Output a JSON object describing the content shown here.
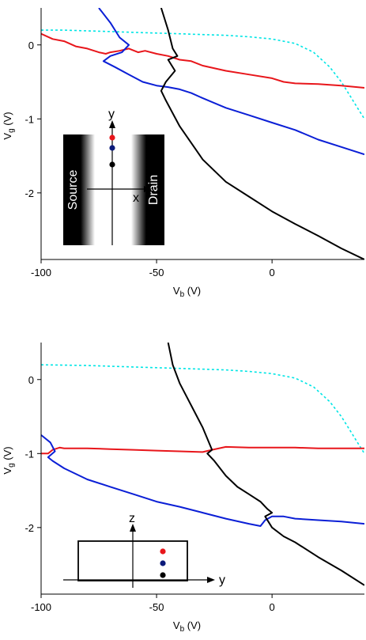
{
  "chart_data": [
    {
      "type": "line",
      "xlabel": "V",
      "xlabel_sub": "b",
      "xlabel_unit": " (V)",
      "ylabel": "V",
      "ylabel_sub": "g",
      "ylabel_unit": " (V)",
      "xlim": [
        -100,
        40
      ],
      "ylim": [
        -2.9,
        0.5
      ],
      "xticks": [
        -100,
        -50,
        0
      ],
      "yticks": [
        0,
        -1,
        -2
      ],
      "grid": false,
      "series": [
        {
          "color": "#00e5e5",
          "dashed": true,
          "x": [
            -100,
            -90,
            -80,
            -70,
            -60,
            -50,
            -40,
            -30,
            -20,
            -10,
            0,
            10,
            18,
            25,
            30,
            34,
            37,
            40
          ],
          "y": [
            0.2,
            0.2,
            0.19,
            0.18,
            0.17,
            0.16,
            0.15,
            0.14,
            0.13,
            0.11,
            0.08,
            0.02,
            -0.1,
            -0.3,
            -0.5,
            -0.7,
            -0.85,
            -1.0
          ]
        },
        {
          "color": "#e8161b",
          "dashed": false,
          "x": [
            -100,
            -95,
            -90,
            -85,
            -80,
            -75,
            -72,
            -70,
            -66,
            -62,
            -58,
            -55,
            -50,
            -45,
            -40,
            -35,
            -30,
            -20,
            -10,
            0,
            5,
            10,
            20,
            30,
            40
          ],
          "y": [
            0.15,
            0.08,
            0.05,
            -0.02,
            -0.05,
            -0.1,
            -0.12,
            -0.1,
            -0.08,
            -0.05,
            -0.1,
            -0.08,
            -0.12,
            -0.15,
            -0.2,
            -0.22,
            -0.28,
            -0.35,
            -0.4,
            -0.45,
            -0.5,
            -0.52,
            -0.53,
            -0.55,
            -0.58
          ]
        },
        {
          "color": "#0b1fd6",
          "dashed": false,
          "x": [
            -75,
            -70,
            -66,
            -62,
            -65,
            -70,
            -73,
            -68,
            -62,
            -56,
            -50,
            -45,
            -40,
            -35,
            -30,
            -20,
            -10,
            0,
            10,
            20,
            30,
            40
          ],
          "y": [
            0.5,
            0.3,
            0.1,
            0.0,
            -0.1,
            -0.15,
            -0.22,
            -0.3,
            -0.4,
            -0.5,
            -0.55,
            -0.57,
            -0.6,
            -0.65,
            -0.72,
            -0.85,
            -0.95,
            -1.05,
            -1.15,
            -1.28,
            -1.38,
            -1.48
          ]
        },
        {
          "color": "#000000",
          "dashed": false,
          "x": [
            -48,
            -45,
            -43,
            -41,
            -45,
            -42,
            -46,
            -48,
            -46,
            -40,
            -30,
            -20,
            -10,
            0,
            10,
            20,
            30,
            40
          ],
          "y": [
            0.5,
            0.2,
            -0.05,
            -0.15,
            -0.2,
            -0.35,
            -0.5,
            -0.62,
            -0.75,
            -1.1,
            -1.55,
            -1.85,
            -2.05,
            -2.25,
            -2.42,
            -2.58,
            -2.75,
            -2.9
          ]
        }
      ],
      "inset": {
        "type": "xy",
        "y_axis_label": "y",
        "x_axis_label": "x",
        "source_label": "Source",
        "drain_label": "Drain"
      }
    },
    {
      "type": "line",
      "xlabel": "V",
      "xlabel_sub": "b",
      "xlabel_unit": " (V)",
      "ylabel": "V",
      "ylabel_sub": "g",
      "ylabel_unit": " (V)",
      "xlim": [
        -100,
        40
      ],
      "ylim": [
        -2.9,
        0.5
      ],
      "xticks": [
        -100,
        -50,
        0
      ],
      "yticks": [
        0,
        -1,
        -2
      ],
      "grid": false,
      "series": [
        {
          "color": "#00e5e5",
          "dashed": true,
          "x": [
            -100,
            -80,
            -60,
            -40,
            -20,
            -10,
            0,
            10,
            18,
            25,
            30,
            34,
            37,
            40
          ],
          "y": [
            0.2,
            0.19,
            0.17,
            0.15,
            0.13,
            0.11,
            0.08,
            0.02,
            -0.1,
            -0.3,
            -0.5,
            -0.7,
            -0.85,
            -1.0
          ]
        },
        {
          "color": "#e8161b",
          "dashed": false,
          "x": [
            -100,
            -97,
            -95,
            -92,
            -90,
            -80,
            -70,
            -60,
            -50,
            -40,
            -30,
            -26,
            -20,
            -10,
            0,
            10,
            20,
            30,
            40
          ],
          "y": [
            -1.0,
            -1.0,
            -0.95,
            -0.92,
            -0.93,
            -0.93,
            -0.94,
            -0.95,
            -0.96,
            -0.97,
            -0.98,
            -0.95,
            -0.91,
            -0.92,
            -0.92,
            -0.92,
            -0.93,
            -0.93,
            -0.93
          ]
        },
        {
          "color": "#0b1fd6",
          "dashed": false,
          "x": [
            -100,
            -96,
            -94,
            -97,
            -95,
            -90,
            -80,
            -70,
            -60,
            -50,
            -40,
            -30,
            -20,
            -10,
            -5,
            -3,
            0,
            5,
            10,
            20,
            30,
            40
          ],
          "y": [
            -0.75,
            -0.85,
            -0.97,
            -1.05,
            -1.1,
            -1.2,
            -1.35,
            -1.45,
            -1.55,
            -1.65,
            -1.72,
            -1.8,
            -1.88,
            -1.95,
            -1.98,
            -1.9,
            -1.85,
            -1.85,
            -1.88,
            -1.9,
            -1.92,
            -1.95
          ]
        },
        {
          "color": "#000000",
          "dashed": false,
          "x": [
            -45,
            -43,
            -40,
            -35,
            -30,
            -26,
            -28,
            -25,
            -20,
            -15,
            -10,
            -5,
            -2,
            0,
            -3,
            0,
            5,
            10,
            20,
            30,
            40
          ],
          "y": [
            0.5,
            0.2,
            -0.05,
            -0.35,
            -0.65,
            -0.95,
            -1.0,
            -1.1,
            -1.3,
            -1.45,
            -1.55,
            -1.65,
            -1.75,
            -1.8,
            -1.85,
            -2.0,
            -2.12,
            -2.2,
            -2.4,
            -2.58,
            -2.78
          ]
        }
      ],
      "inset": {
        "type": "zy",
        "z_axis_label": "z",
        "y_axis_label": "y"
      }
    }
  ]
}
